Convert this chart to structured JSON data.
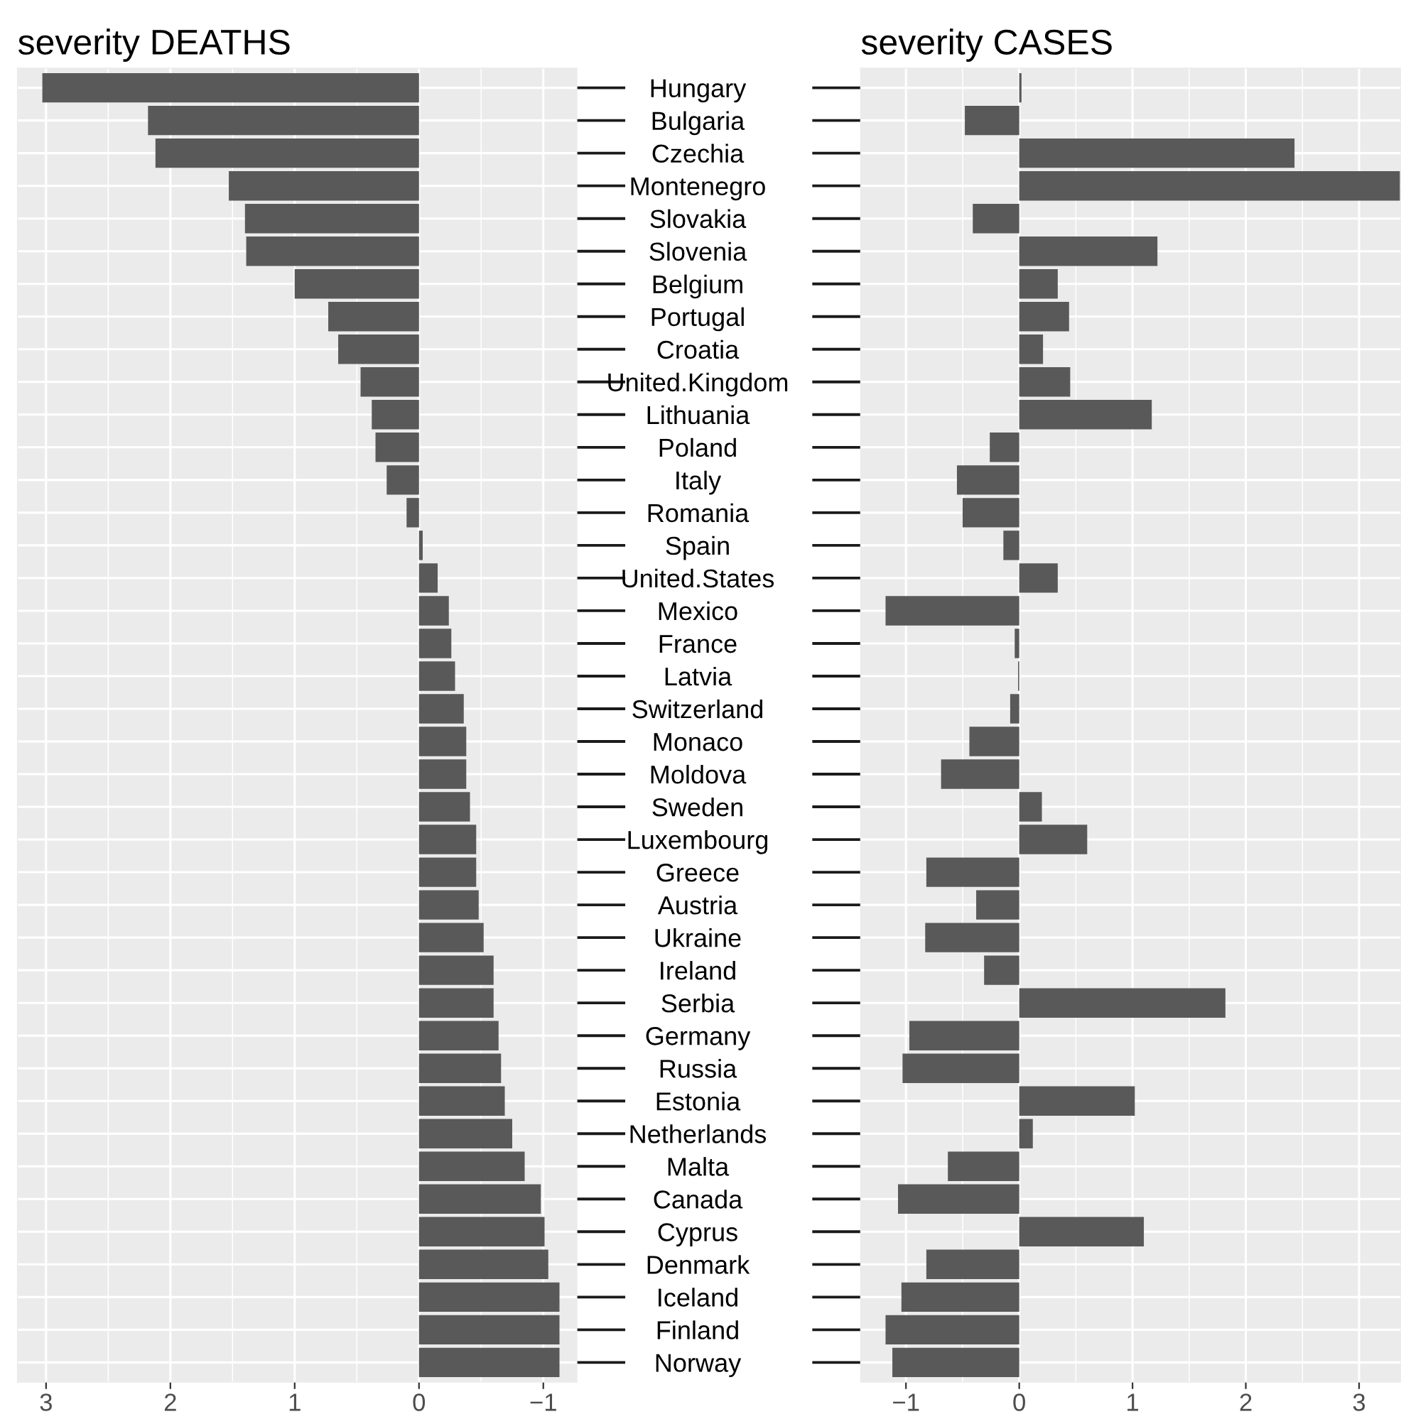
{
  "chart_data": [
    {
      "type": "bar",
      "orientation": "horizontal",
      "title": "severity DEATHS",
      "categories": [
        "Hungary",
        "Bulgaria",
        "Czechia",
        "Montenegro",
        "Slovakia",
        "Slovenia",
        "Belgium",
        "Portugal",
        "Croatia",
        "United.Kingdom",
        "Lithuania",
        "Poland",
        "Italy",
        "Romania",
        "Spain",
        "United.States",
        "Mexico",
        "France",
        "Latvia",
        "Switzerland",
        "Monaco",
        "Moldova",
        "Sweden",
        "Luxembourg",
        "Greece",
        "Austria",
        "Ukraine",
        "Ireland",
        "Serbia",
        "Germany",
        "Russia",
        "Estonia",
        "Netherlands",
        "Malta",
        "Canada",
        "Cyprus",
        "Denmark",
        "Iceland",
        "Finland",
        "Norway"
      ],
      "values": [
        3.03,
        2.18,
        2.12,
        1.53,
        1.4,
        1.39,
        1.0,
        0.73,
        0.65,
        0.47,
        0.38,
        0.35,
        0.26,
        0.1,
        -0.03,
        -0.15,
        -0.24,
        -0.26,
        -0.29,
        -0.36,
        -0.38,
        -0.38,
        -0.41,
        -0.46,
        -0.46,
        -0.48,
        -0.52,
        -0.6,
        -0.6,
        -0.64,
        -0.66,
        -0.69,
        -0.75,
        -0.85,
        -0.98,
        -1.01,
        -1.04,
        -1.13,
        -1.13,
        -1.13
      ],
      "color": "#595959",
      "xlim": [
        3.23,
        -1.27
      ],
      "xticks": [
        3,
        2,
        1,
        0,
        {
          "value": -1,
          "label": "−1"
        }
      ],
      "grid": true
    },
    {
      "type": "bar",
      "orientation": "horizontal",
      "title": "severity CASES",
      "categories": [
        "Hungary",
        "Bulgaria",
        "Czechia",
        "Montenegro",
        "Slovakia",
        "Slovenia",
        "Belgium",
        "Portugal",
        "Croatia",
        "United.Kingdom",
        "Lithuania",
        "Poland",
        "Italy",
        "Romania",
        "Spain",
        "United.States",
        "Mexico",
        "France",
        "Latvia",
        "Switzerland",
        "Monaco",
        "Moldova",
        "Sweden",
        "Luxembourg",
        "Greece",
        "Austria",
        "Ukraine",
        "Ireland",
        "Serbia",
        "Germany",
        "Russia",
        "Estonia",
        "Netherlands",
        "Malta",
        "Canada",
        "Cyprus",
        "Denmark",
        "Iceland",
        "Finland",
        "Norway"
      ],
      "values": [
        0.02,
        -0.48,
        2.43,
        3.36,
        -0.41,
        1.22,
        0.34,
        0.44,
        0.21,
        0.45,
        1.17,
        -0.26,
        -0.55,
        -0.5,
        -0.14,
        0.34,
        -1.18,
        -0.04,
        -0.01,
        -0.08,
        -0.44,
        -0.69,
        0.2,
        0.6,
        -0.82,
        -0.38,
        -0.83,
        -0.31,
        1.82,
        -0.97,
        -1.03,
        1.02,
        0.12,
        -0.63,
        -1.07,
        1.1,
        -0.82,
        -1.04,
        -1.18,
        -1.12
      ],
      "color": "#595959",
      "xlim": [
        -1.4,
        3.37
      ],
      "xticks": [
        {
          "value": -1,
          "label": "−1"
        },
        0,
        1,
        2,
        3
      ],
      "grid": true,
      "tick_labels": "x"
    }
  ]
}
